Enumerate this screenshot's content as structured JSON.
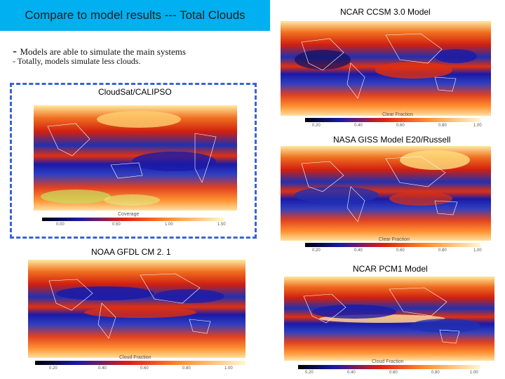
{
  "slide": {
    "title": "Compare to model results --- Total Clouds",
    "bullets": [
      "Models are able to simulate the main systems",
      "- Totally, models simulate less clouds."
    ]
  },
  "panels": {
    "ncar_ccsm": {
      "title": "NCAR CCSM 3.0 Model",
      "colorbar_label": "Clear Fraction",
      "ticks": [
        "0.20",
        "0.40",
        "0.60",
        "0.80",
        "1.00"
      ]
    },
    "nasa_giss": {
      "title": "NASA GISS Model E20/Russell",
      "colorbar_label": "Clear Fraction",
      "ticks": [
        "0.20",
        "0.40",
        "0.60",
        "0.80",
        "1.00"
      ]
    },
    "cloudsat": {
      "title": "CloudSat/CALIPSO",
      "colorbar_label": "Coverage",
      "ticks": [
        "0.00",
        "0.50",
        "1.00",
        "1.50"
      ]
    },
    "noaa_gfdl": {
      "title": "NOAA GFDL CM 2. 1",
      "colorbar_label": "Cloud Fraction",
      "ticks": [
        "0.20",
        "0.40",
        "0.60",
        "0.80",
        "1.00"
      ]
    },
    "ncar_pcm1": {
      "title": "NCAR PCM1 Model",
      "colorbar_label": "Cloud Fraction",
      "ticks": [
        "0.20",
        "0.40",
        "0.60",
        "0.80",
        "1.00"
      ]
    }
  },
  "colors": {
    "title_bg": "#00b0f0",
    "dashed_frame": "#3a63d8",
    "cloud_low": "#1a1aa8",
    "cloud_mid": "#e03010",
    "cloud_high": "#ffe9a0"
  }
}
